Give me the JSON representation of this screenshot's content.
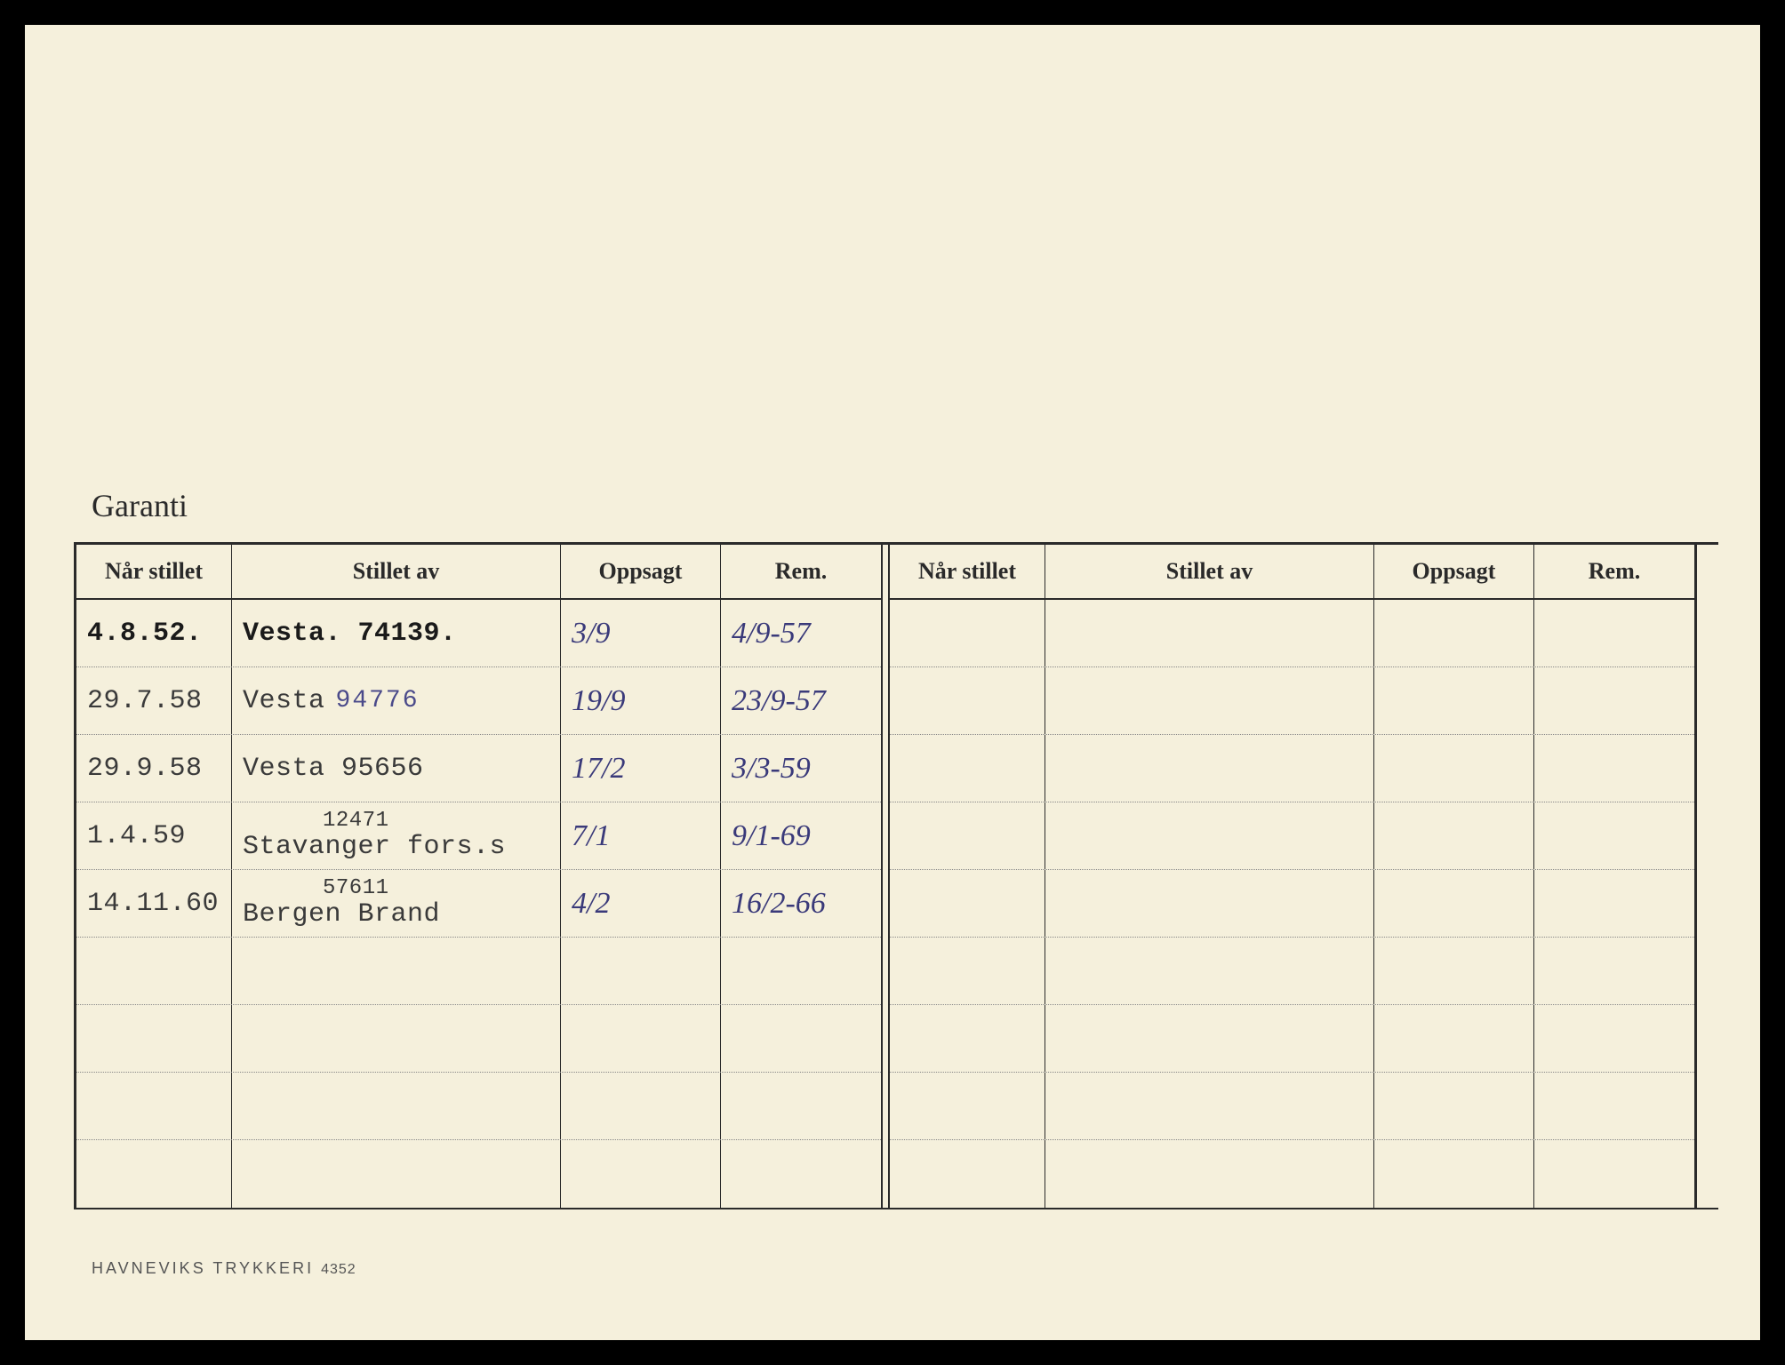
{
  "title": "Garanti",
  "colors": {
    "page_bg": "#f5f0dc",
    "border": "#2a2a2a",
    "typed_text": "#3a3a3a",
    "handwritten": "#3a3a7a",
    "footer_text": "#555555"
  },
  "columns": {
    "nar_stillet": "Når stillet",
    "stillet_av": "Stillet av",
    "oppsagt": "Oppsagt",
    "rem": "Rem."
  },
  "rows_left": [
    {
      "nar": "4.8.52.",
      "nar_bold": true,
      "stillet": "Vesta. 74139.",
      "stillet_bold": true,
      "oppsagt": "3/9",
      "rem": "4/9-57"
    },
    {
      "nar": "29.7.58",
      "stillet": "Vesta",
      "stillet_hw_num": "94776",
      "oppsagt": "19/9",
      "rem": "23/9-57"
    },
    {
      "nar": "29.9.58",
      "stillet": "Vesta 95656",
      "oppsagt": "17/2",
      "rem": "3/3-59"
    },
    {
      "nar": "1.4.59",
      "stillet": "Stavanger fors.s",
      "stillet_sup": "12471",
      "oppsagt": "7/1",
      "rem": "9/1-69"
    },
    {
      "nar": "14.11.60",
      "stillet": "Bergen Brand",
      "stillet_sup": "57611",
      "oppsagt": "4/2",
      "rem": "16/2-66"
    },
    {
      "nar": "",
      "stillet": "",
      "oppsagt": "",
      "rem": ""
    },
    {
      "nar": "",
      "stillet": "",
      "oppsagt": "",
      "rem": ""
    },
    {
      "nar": "",
      "stillet": "",
      "oppsagt": "",
      "rem": ""
    },
    {
      "nar": "",
      "stillet": "",
      "oppsagt": "",
      "rem": ""
    }
  ],
  "rows_right": [
    {
      "nar": "",
      "stillet": "",
      "oppsagt": "",
      "rem": ""
    },
    {
      "nar": "",
      "stillet": "",
      "oppsagt": "",
      "rem": ""
    },
    {
      "nar": "",
      "stillet": "",
      "oppsagt": "",
      "rem": ""
    },
    {
      "nar": "",
      "stillet": "",
      "oppsagt": "",
      "rem": ""
    },
    {
      "nar": "",
      "stillet": "",
      "oppsagt": "",
      "rem": ""
    },
    {
      "nar": "",
      "stillet": "",
      "oppsagt": "",
      "rem": ""
    },
    {
      "nar": "",
      "stillet": "",
      "oppsagt": "",
      "rem": ""
    },
    {
      "nar": "",
      "stillet": "",
      "oppsagt": "",
      "rem": ""
    },
    {
      "nar": "",
      "stillet": "",
      "oppsagt": "",
      "rem": ""
    }
  ],
  "footer": {
    "text": "HAVNEVIKS TRYKKERI",
    "num": "4352"
  }
}
